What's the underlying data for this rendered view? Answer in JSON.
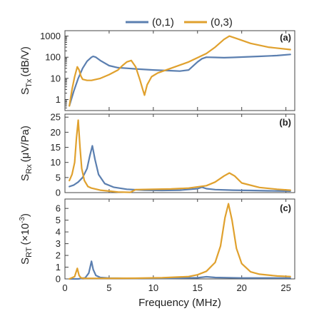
{
  "colors": {
    "series_0_1": "#5b7fb0",
    "series_0_3": "#e0a12e"
  },
  "chart_data": {
    "type": "line",
    "xlabel": "Frequency (MHz)",
    "xlim": [
      0,
      26
    ],
    "xticks": [
      0,
      5,
      10,
      15,
      20,
      25
    ],
    "legend": {
      "placement": "top-center",
      "entries": [
        "(0,1)",
        "(0,3)"
      ]
    },
    "panels": [
      {
        "tag": "(a)",
        "ylabel": "S_Tx (dB/V)",
        "ylabel_main": "S",
        "ylabel_sub": "Tx",
        "ylabel_units": "(dB/V)",
        "scale": "log",
        "ylim": [
          0.3,
          1800
        ],
        "yticks": [
          1,
          10,
          100,
          1000
        ],
        "ytick_labels": [
          "1",
          "10",
          "100",
          "1000"
        ],
        "series": [
          {
            "name": "(0,1)",
            "x": [
              0.5,
              1,
              1.5,
              2,
              2.5,
              3,
              3.2,
              3.5,
              4,
              5,
              6,
              7,
              8,
              10,
              12,
              13,
              14,
              15,
              15.5,
              16,
              17,
              18,
              19,
              20,
              22,
              24,
              25.5
            ],
            "y": [
              0.5,
              2.5,
              10,
              30,
              65,
              100,
              110,
              100,
              70,
              40,
              32,
              30,
              28,
              25,
              23,
              22,
              25,
              60,
              85,
              100,
              98,
              95,
              98,
              102,
              110,
              120,
              135
            ]
          },
          {
            "name": "(0,3)",
            "x": [
              0.5,
              0.8,
              1.1,
              1.4,
              1.6,
              1.8,
              2,
              2.5,
              3,
              4,
              5,
              6,
              6.5,
              7,
              7.5,
              8,
              8.5,
              8.8,
              9,
              9.3,
              9.8,
              10.5,
              12,
              14,
              16,
              17,
              18,
              18.6,
              19.5,
              21,
              23,
              25.5
            ],
            "y": [
              0.5,
              3,
              12,
              35,
              25,
              13,
              9,
              8,
              8,
              10,
              15,
              25,
              40,
              60,
              70,
              35,
              8,
              3,
              1.6,
              5,
              12,
              18,
              30,
              60,
              150,
              300,
              700,
              1000,
              750,
              450,
              300,
              230
            ]
          }
        ]
      },
      {
        "tag": "(b)",
        "ylabel": "S_Rx (μV/Pa)",
        "ylabel_main": "S",
        "ylabel_sub": "Rx",
        "ylabel_units": "(μV/Pa)",
        "scale": "linear",
        "ylim": [
          0,
          26
        ],
        "yticks": [
          0,
          5,
          10,
          15,
          20,
          25
        ],
        "ytick_labels": [
          "0",
          "5",
          "10",
          "15",
          "20",
          "25"
        ],
        "series": [
          {
            "name": "(0,1)",
            "x": [
              0.5,
              1,
              1.5,
              2,
              2.5,
              2.8,
              3.1,
              3.4,
              3.8,
              4.5,
              5.5,
              7,
              9,
              11,
              13,
              15,
              15.5,
              16,
              17,
              19,
              21,
              23,
              25.5
            ],
            "y": [
              2,
              2.5,
              3.5,
              5,
              8,
              12,
              15.5,
              11,
              6,
              3,
              1.8,
              1.1,
              0.8,
              0.7,
              0.8,
              1.3,
              1.8,
              1.3,
              1,
              0.8,
              0.7,
              0.6,
              0.5
            ]
          },
          {
            "name": "(0,3)",
            "x": [
              0.5,
              0.8,
              1.1,
              1.3,
              1.5,
              1.7,
              1.9,
              2.2,
              2.6,
              3,
              4,
              5,
              6,
              7.4,
              8,
              10,
              12,
              14,
              16,
              17,
              18,
              18.6,
              19.2,
              20,
              22,
              24,
              25.5
            ],
            "y": [
              4,
              6,
              10,
              18,
              24,
              15,
              8,
              4,
              2,
              1.5,
              0.8,
              0.5,
              0.2,
              0.1,
              1,
              1.1,
              1.2,
              1.5,
              2.3,
              3.5,
              5.5,
              6.5,
              5.5,
              3.2,
              1.7,
              1.1,
              0.8
            ]
          }
        ]
      },
      {
        "tag": "(c)",
        "ylabel": "S_RT (×10^-3)",
        "ylabel_main": "S",
        "ylabel_sub": "RT",
        "ylabel_units": "(×10",
        "ylabel_sup": "-3",
        "ylabel_close": ")",
        "scale": "linear",
        "ylim": [
          0,
          6.8
        ],
        "yticks": [
          0,
          1,
          2,
          3,
          4,
          5,
          6
        ],
        "ytick_labels": [
          "0",
          "1",
          "2",
          "3",
          "4",
          "5",
          "6"
        ],
        "series": [
          {
            "name": "(0,1)",
            "x": [
              0.5,
              1.5,
              2.3,
              2.7,
              3,
              3.2,
              3.5,
              4,
              5,
              8,
              12,
              15,
              16,
              17,
              20,
              25.5
            ],
            "y": [
              0,
              0,
              0.1,
              0.5,
              1.5,
              0.8,
              0.3,
              0.12,
              0.07,
              0.05,
              0.05,
              0.1,
              0.18,
              0.12,
              0.08,
              0.07
            ]
          },
          {
            "name": "(0,3)",
            "x": [
              0.5,
              1.1,
              1.4,
              1.6,
              1.8,
              2.2,
              3,
              5,
              8,
              11,
              14,
              15,
              16,
              17,
              17.6,
              18.1,
              18.5,
              18.9,
              19.4,
              20,
              21,
              22,
              24,
              25.5
            ],
            "y": [
              0,
              0.2,
              0.9,
              0.3,
              0.1,
              0.05,
              0.05,
              0.05,
              0.06,
              0.1,
              0.2,
              0.35,
              0.65,
              1.4,
              2.8,
              5.2,
              6.4,
              5.0,
              2.6,
              1.3,
              0.6,
              0.4,
              0.25,
              0.2
            ]
          }
        ]
      }
    ]
  }
}
